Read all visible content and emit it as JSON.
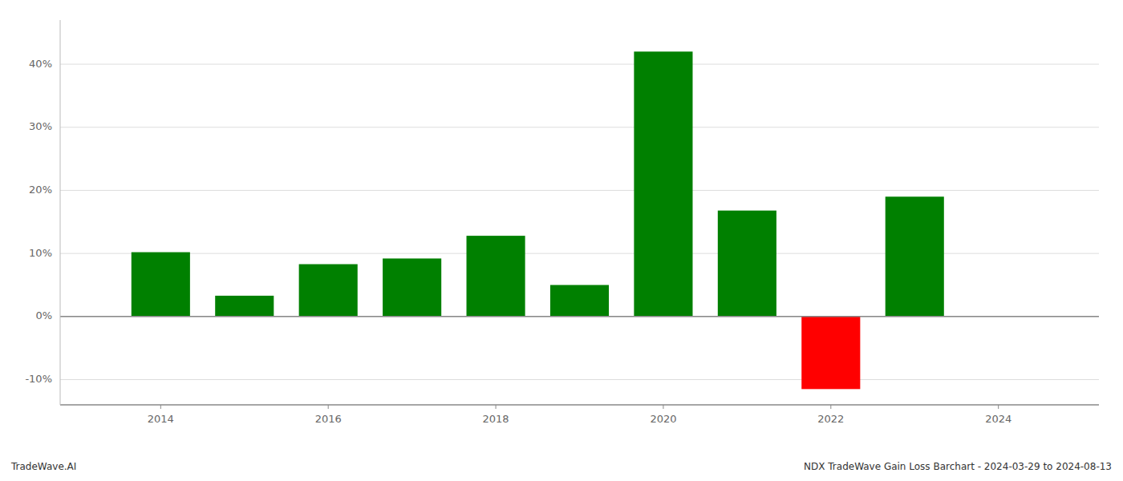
{
  "chart_data": {
    "type": "bar",
    "x": [
      2014,
      2015,
      2016,
      2017,
      2018,
      2019,
      2020,
      2021,
      2022,
      2023
    ],
    "values": [
      10.2,
      3.3,
      8.3,
      9.2,
      12.8,
      5.0,
      42.0,
      16.8,
      -11.5,
      19.0
    ],
    "colors": [
      "#008000",
      "#008000",
      "#008000",
      "#008000",
      "#008000",
      "#008000",
      "#008000",
      "#008000",
      "#ff0000",
      "#008000"
    ],
    "xlim": [
      2012.8,
      2025.2
    ],
    "xticks": [
      2014,
      2016,
      2018,
      2020,
      2022,
      2024
    ],
    "ylim": [
      -14,
      47
    ],
    "yticks": [
      {
        "value": -10,
        "label": "-10%"
      },
      {
        "value": 0,
        "label": "0%"
      },
      {
        "value": 10,
        "label": "10%"
      },
      {
        "value": 20,
        "label": "20%"
      },
      {
        "value": 30,
        "label": "30%"
      },
      {
        "value": 40,
        "label": "40%"
      }
    ],
    "grid": true,
    "annotations": [
      "TradeWave.AI",
      "NDX TradeWave Gain Loss Barchart - 2024-03-29 to 2024-08-13"
    ]
  }
}
